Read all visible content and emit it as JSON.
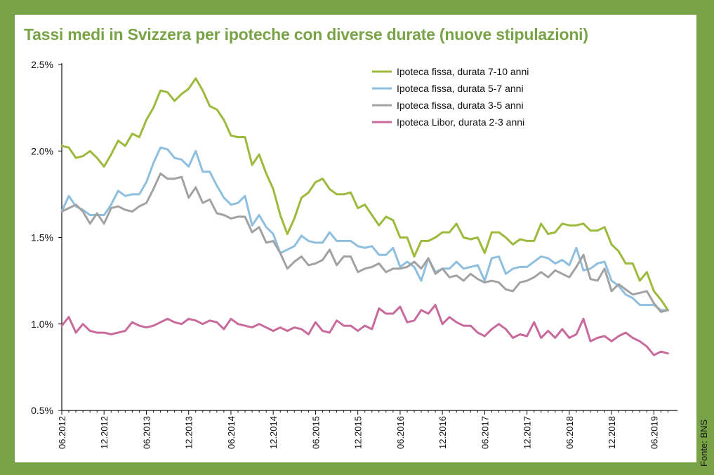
{
  "title": "Tassi medi in Svizzera per ipoteche con diverse durate (nuove stipulazioni)",
  "source": "Fonte: BNS",
  "colors": {
    "background": "#79a347",
    "title": "#79a347",
    "fix_7_10": "#9cba3c",
    "fix_5_7": "#8ebfdf",
    "fix_3_5": "#a2a2a2",
    "libor": "#c96a9c"
  },
  "chart_data": {
    "type": "line",
    "title": "Tassi medi in Svizzera per ipoteche con diverse durate (nuove stipulazioni)",
    "xlabel": "",
    "ylabel": "",
    "ylim": [
      0.5,
      2.5
    ],
    "y_ticks": [
      "2.5%",
      "2.0%",
      "1.5%",
      "1.0%",
      "0.5%"
    ],
    "y_tick_values": [
      2.5,
      2.0,
      1.5,
      1.0,
      0.5
    ],
    "x_tick_labels": [
      "06.2012",
      "12.2012",
      "06.2013",
      "12.2013",
      "06.2014",
      "12.2014",
      "06.2015",
      "12.2015",
      "06.2016",
      "12.2016",
      "06.2017",
      "12.2017",
      "06.2018",
      "12.2018",
      "06.2019"
    ],
    "x_start": "06.2012",
    "x_end": "10.2019",
    "legend_position": "top-right",
    "grid": false,
    "series": [
      {
        "name": "Ipoteca fissa, durata 7-10 anni",
        "color_key": "fix_7_10",
        "values": [
          2.03,
          2.02,
          1.96,
          1.97,
          2.0,
          1.96,
          1.91,
          1.98,
          2.06,
          2.03,
          2.1,
          2.08,
          2.18,
          2.25,
          2.35,
          2.34,
          2.29,
          2.33,
          2.36,
          2.42,
          2.35,
          2.26,
          2.24,
          2.18,
          2.09,
          2.08,
          2.08,
          1.92,
          1.98,
          1.87,
          1.78,
          1.63,
          1.52,
          1.61,
          1.73,
          1.76,
          1.82,
          1.84,
          1.78,
          1.75,
          1.75,
          1.76,
          1.67,
          1.69,
          1.63,
          1.57,
          1.62,
          1.6,
          1.5,
          1.5,
          1.39,
          1.48,
          1.48,
          1.5,
          1.53,
          1.53,
          1.58,
          1.5,
          1.49,
          1.5,
          1.41,
          1.53,
          1.53,
          1.5,
          1.46,
          1.49,
          1.48,
          1.48,
          1.58,
          1.52,
          1.53,
          1.58,
          1.57,
          1.57,
          1.58,
          1.54,
          1.54,
          1.56,
          1.46,
          1.42,
          1.35,
          1.35,
          1.25,
          1.3,
          1.19,
          1.14,
          1.08
        ]
      },
      {
        "name": "Ipoteca fissa, durata 5-7 anni",
        "color_key": "fix_5_7",
        "values": [
          1.65,
          1.74,
          1.68,
          1.66,
          1.63,
          1.63,
          1.63,
          1.69,
          1.77,
          1.74,
          1.75,
          1.75,
          1.82,
          1.93,
          2.02,
          2.01,
          1.96,
          1.95,
          1.91,
          2.0,
          1.88,
          1.88,
          1.8,
          1.73,
          1.69,
          1.7,
          1.74,
          1.57,
          1.63,
          1.56,
          1.52,
          1.41,
          1.43,
          1.45,
          1.51,
          1.48,
          1.47,
          1.47,
          1.53,
          1.48,
          1.48,
          1.48,
          1.45,
          1.44,
          1.45,
          1.4,
          1.4,
          1.44,
          1.33,
          1.36,
          1.33,
          1.25,
          1.38,
          1.3,
          1.32,
          1.32,
          1.36,
          1.32,
          1.33,
          1.34,
          1.25,
          1.38,
          1.39,
          1.29,
          1.32,
          1.33,
          1.33,
          1.36,
          1.39,
          1.38,
          1.35,
          1.37,
          1.34,
          1.44,
          1.31,
          1.32,
          1.35,
          1.36,
          1.25,
          1.22,
          1.17,
          1.15,
          1.11,
          1.11,
          1.11,
          1.08,
          1.08
        ]
      },
      {
        "name": "Ipoteca fissa, durata 3-5 anni",
        "color_key": "fix_3_5",
        "values": [
          1.65,
          1.67,
          1.69,
          1.65,
          1.58,
          1.64,
          1.58,
          1.67,
          1.68,
          1.66,
          1.65,
          1.68,
          1.7,
          1.78,
          1.87,
          1.84,
          1.84,
          1.85,
          1.73,
          1.79,
          1.7,
          1.72,
          1.64,
          1.63,
          1.61,
          1.62,
          1.62,
          1.53,
          1.56,
          1.47,
          1.48,
          1.41,
          1.32,
          1.36,
          1.39,
          1.34,
          1.35,
          1.37,
          1.43,
          1.34,
          1.39,
          1.39,
          1.3,
          1.32,
          1.33,
          1.35,
          1.3,
          1.32,
          1.32,
          1.33,
          1.36,
          1.32,
          1.38,
          1.29,
          1.32,
          1.27,
          1.28,
          1.25,
          1.29,
          1.26,
          1.24,
          1.25,
          1.24,
          1.2,
          1.19,
          1.24,
          1.25,
          1.27,
          1.3,
          1.27,
          1.31,
          1.29,
          1.27,
          1.33,
          1.4,
          1.26,
          1.25,
          1.32,
          1.19,
          1.23,
          1.2,
          1.17,
          1.18,
          1.19,
          1.12,
          1.07,
          1.08
        ]
      },
      {
        "name": "Ipoteca Libor, durata 2-3 anni",
        "color_key": "libor",
        "values": [
          0.99,
          1.04,
          0.95,
          1.0,
          0.96,
          0.95,
          0.95,
          0.94,
          0.95,
          0.96,
          1.01,
          0.99,
          0.98,
          0.99,
          1.01,
          1.03,
          1.01,
          1.0,
          1.03,
          1.02,
          1.0,
          1.02,
          1.01,
          0.97,
          1.03,
          1.0,
          0.99,
          0.98,
          1.0,
          0.98,
          0.96,
          0.98,
          0.96,
          0.98,
          0.97,
          0.94,
          1.01,
          0.96,
          0.95,
          1.02,
          0.99,
          0.99,
          0.96,
          0.99,
          0.97,
          1.09,
          1.06,
          1.06,
          1.1,
          1.01,
          1.02,
          1.08,
          1.06,
          1.11,
          1.0,
          1.04,
          1.01,
          0.99,
          0.99,
          0.95,
          0.93,
          0.97,
          1.0,
          0.97,
          0.92,
          0.94,
          0.93,
          1.01,
          0.92,
          0.96,
          0.92,
          0.97,
          0.92,
          0.94,
          1.03,
          0.9,
          0.92,
          0.93,
          0.9,
          0.93,
          0.95,
          0.92,
          0.9,
          0.87,
          0.82,
          0.84,
          0.83
        ]
      }
    ]
  }
}
